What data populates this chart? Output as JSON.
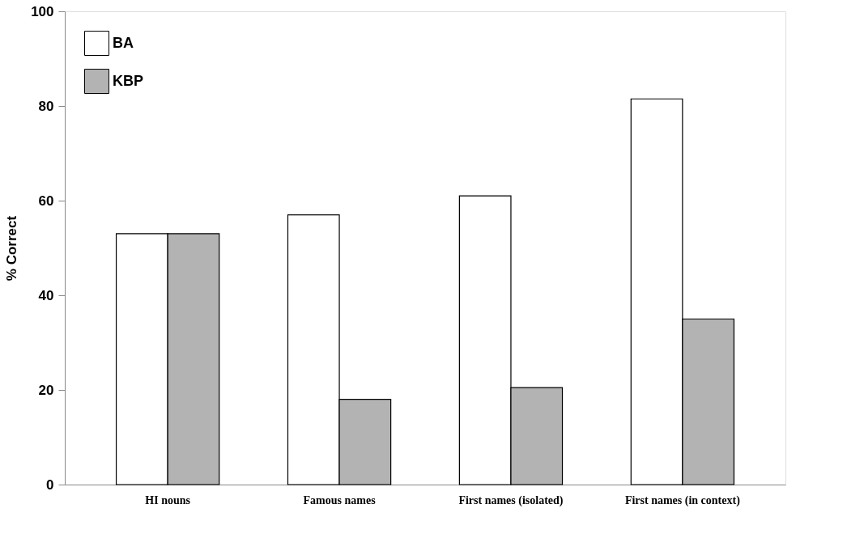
{
  "chart_data": {
    "type": "bar",
    "ylabel": "% Correct",
    "categories": [
      "HI nouns",
      "Famous names",
      "First names (isolated)",
      "First names (in context)"
    ],
    "series": [
      {
        "name": "BA",
        "color": "#ffffff",
        "values": [
          53,
          57,
          61,
          81.5
        ]
      },
      {
        "name": "KBP",
        "color": "#b3b3b3",
        "values": [
          53,
          18,
          20.5,
          35
        ]
      }
    ],
    "ylim": [
      0,
      100
    ],
    "yticks": [
      0,
      20,
      40,
      60,
      80,
      100
    ],
    "grid": false,
    "legend": "top left"
  }
}
